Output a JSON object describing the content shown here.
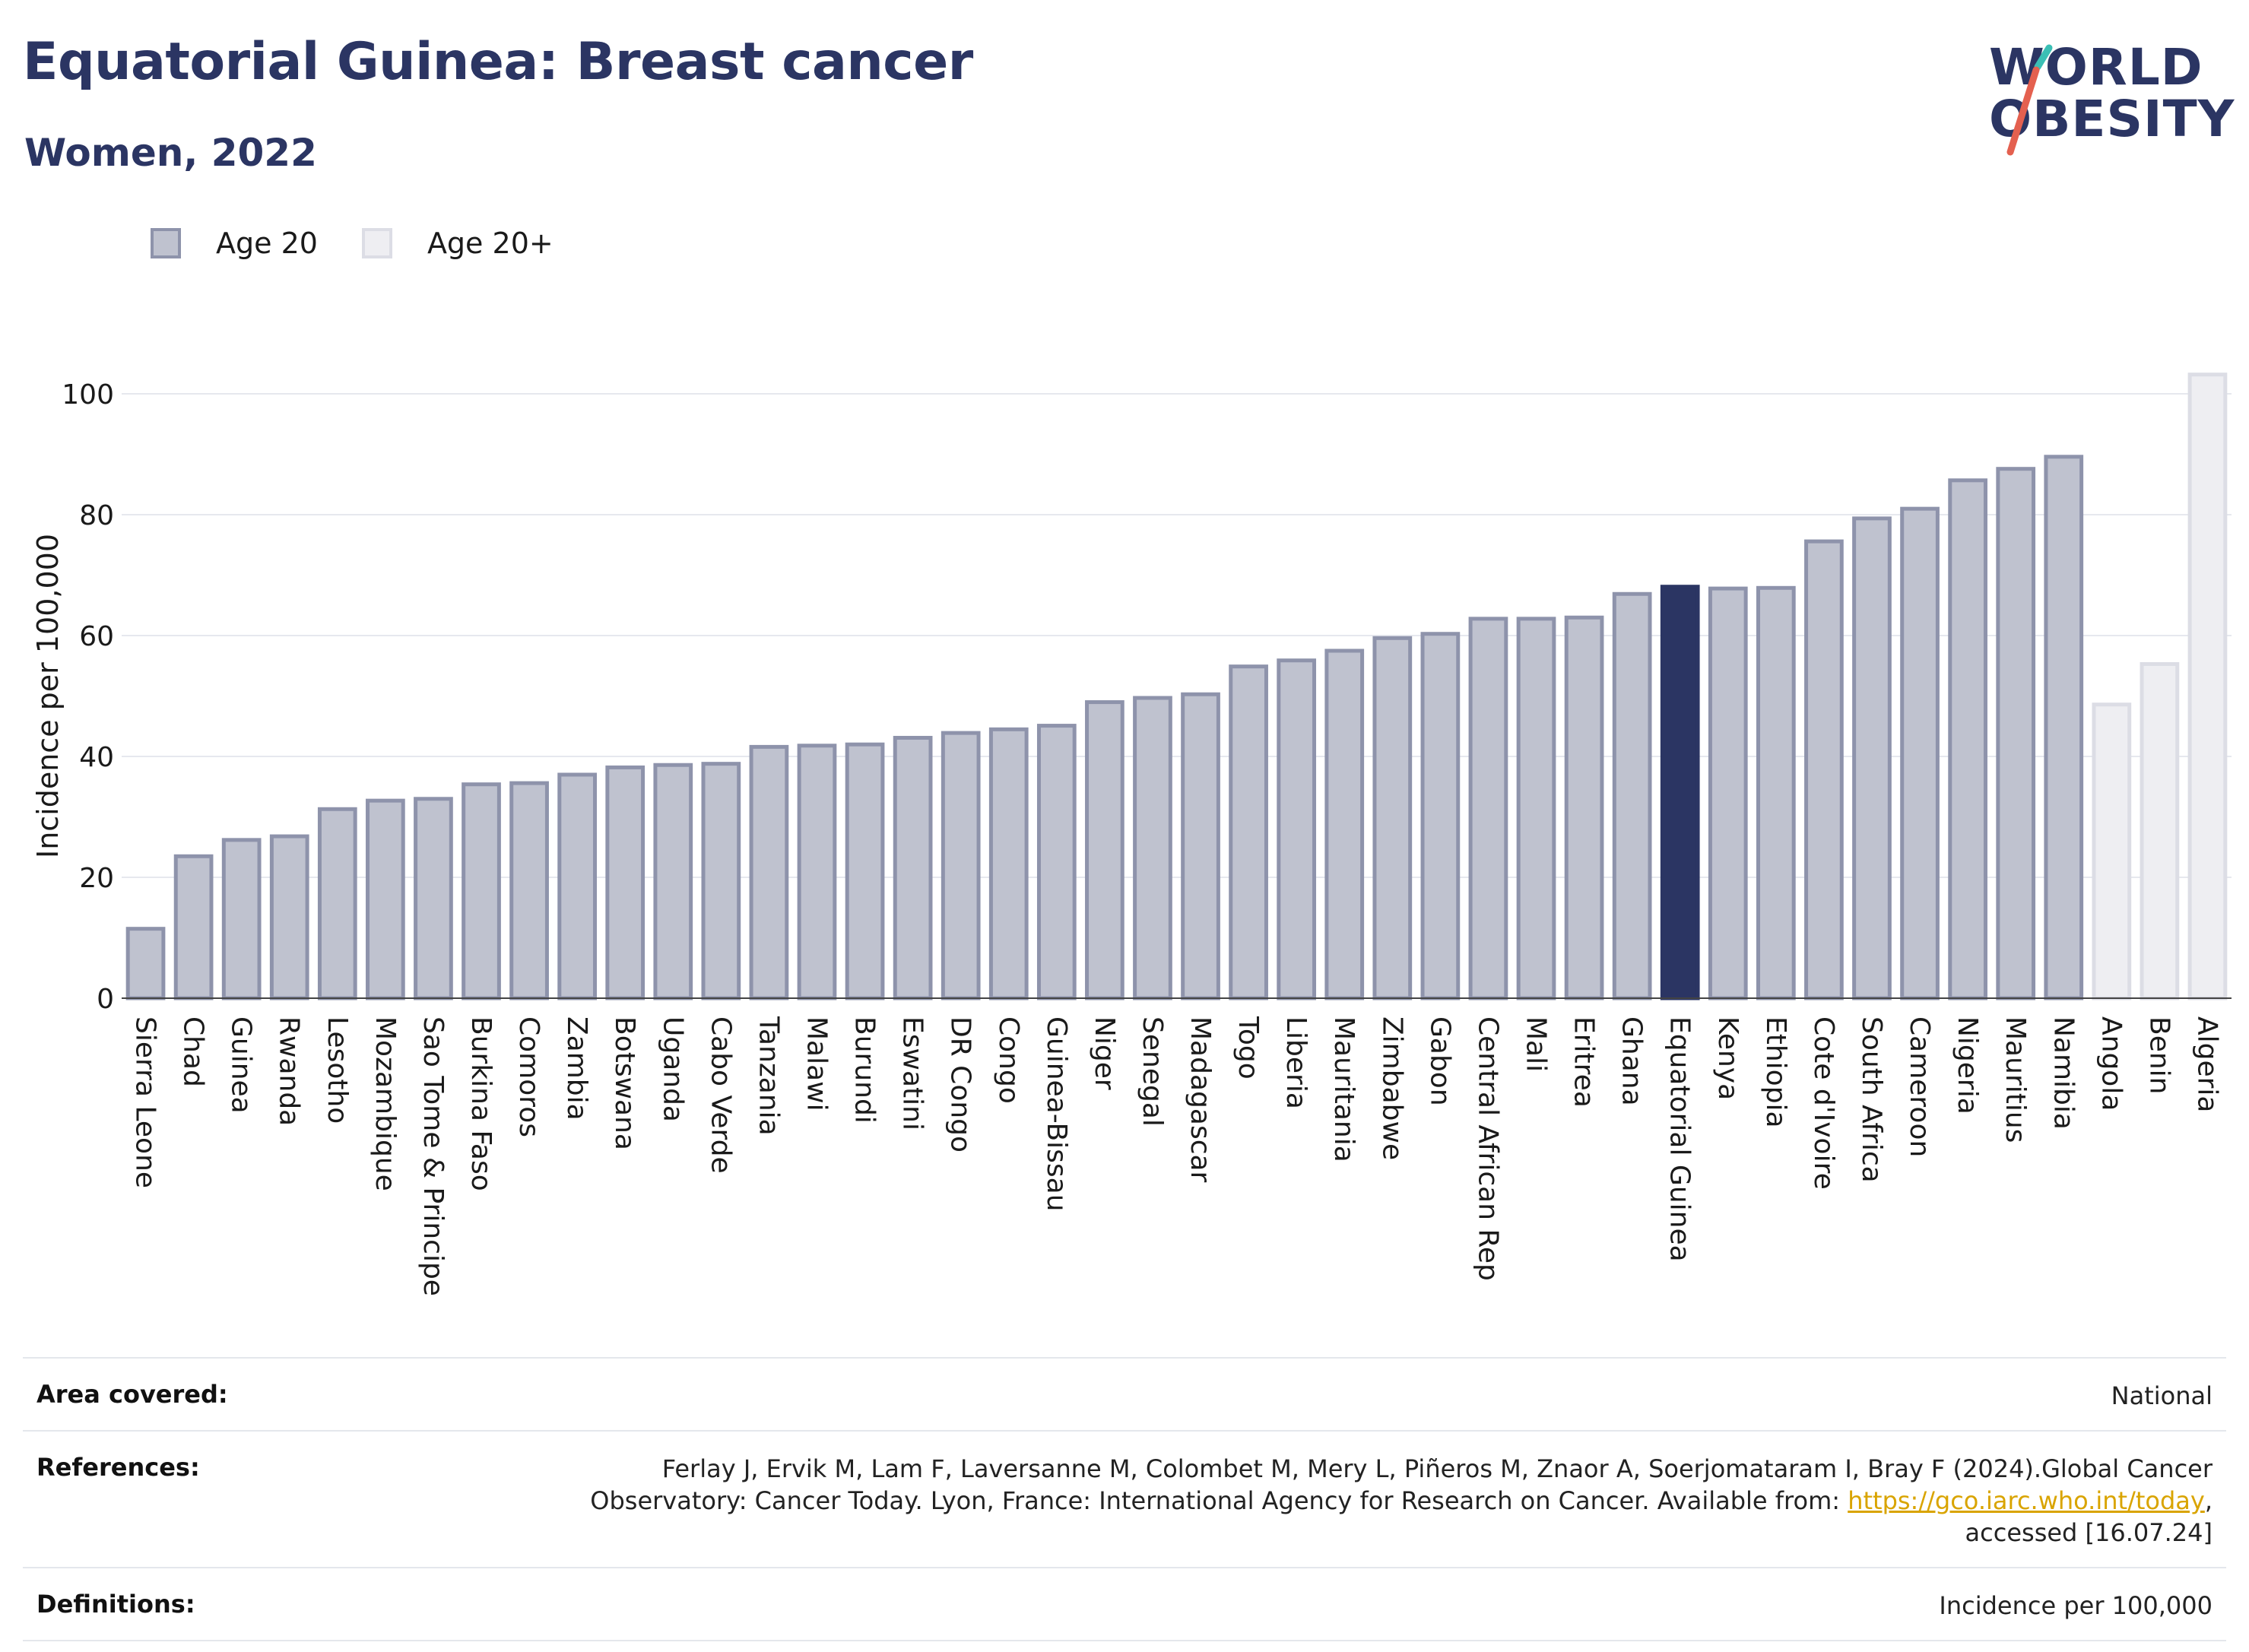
{
  "header": {
    "title": "Equatorial Guinea: Breast cancer",
    "subtitle": "Women, 2022"
  },
  "logo": {
    "line1": "WORLD",
    "line2": "OBESITY"
  },
  "legend": [
    {
      "label": "Age 20",
      "color": "#bfc2cf"
    },
    {
      "label": "Age 20+",
      "color": "#eeeef2"
    }
  ],
  "colors": {
    "bar_age20": "#bfc2cf",
    "bar_age20_border": "#8e93ab",
    "bar_highlight": "#2b3563",
    "bar_age20plus": "#eeeef2",
    "bar_age20plus_border": "#dcdde5",
    "title": "#2b3563",
    "logo_slash_teal": "#3bbfb5",
    "logo_slash_coral": "#e4604f"
  },
  "chart_data": {
    "type": "bar",
    "title": "Equatorial Guinea: Breast cancer",
    "subtitle": "Women, 2022",
    "xlabel": "",
    "ylabel": "Incidence per 100,000",
    "ylim": [
      0,
      105
    ],
    "yticks": [
      0,
      20,
      40,
      60,
      80,
      100
    ],
    "grid": true,
    "legend_position": "top-left",
    "highlight": "Equatorial Guinea",
    "categories": [
      "Sierra Leone",
      "Chad",
      "Guinea",
      "Rwanda",
      "Lesotho",
      "Mozambique",
      "Sao Tome & Principe",
      "Burkina Faso",
      "Comoros",
      "Zambia",
      "Botswana",
      "Uganda",
      "Cabo Verde",
      "Tanzania",
      "Malawi",
      "Burundi",
      "Eswatini",
      "DR Congo",
      "Congo",
      "Guinea-Bissau",
      "Niger",
      "Senegal",
      "Madagascar",
      "Togo",
      "Liberia",
      "Mauritania",
      "Zimbabwe",
      "Gabon",
      "Central African Rep",
      "Mali",
      "Eritrea",
      "Ghana",
      "Equatorial Guinea",
      "Kenya",
      "Ethiopia",
      "Cote d'Ivoire",
      "South Africa",
      "Cameroon",
      "Nigeria",
      "Mauritius",
      "Namibia",
      "Angola",
      "Benin",
      "Algeria"
    ],
    "values": [
      11.8,
      23.8,
      26.5,
      27.1,
      31.6,
      33.0,
      33.3,
      35.7,
      35.9,
      37.3,
      38.5,
      38.9,
      39.1,
      41.9,
      42.1,
      42.3,
      43.4,
      44.2,
      44.8,
      45.4,
      49.3,
      50.0,
      50.6,
      55.2,
      56.2,
      57.8,
      59.9,
      60.6,
      63.1,
      63.1,
      63.3,
      67.2,
      68.4,
      68.1,
      68.2,
      75.9,
      79.7,
      81.3,
      86.0,
      87.9,
      89.9,
      48.9,
      55.6,
      103.5
    ],
    "groups": [
      "Age 20",
      "Age 20",
      "Age 20",
      "Age 20",
      "Age 20",
      "Age 20",
      "Age 20",
      "Age 20",
      "Age 20",
      "Age 20",
      "Age 20",
      "Age 20",
      "Age 20",
      "Age 20",
      "Age 20",
      "Age 20",
      "Age 20",
      "Age 20",
      "Age 20",
      "Age 20",
      "Age 20",
      "Age 20",
      "Age 20",
      "Age 20",
      "Age 20",
      "Age 20",
      "Age 20",
      "Age 20",
      "Age 20",
      "Age 20",
      "Age 20",
      "Age 20",
      "Age 20",
      "Age 20",
      "Age 20",
      "Age 20",
      "Age 20",
      "Age 20",
      "Age 20",
      "Age 20",
      "Age 20",
      "Age 20+",
      "Age 20+",
      "Age 20+"
    ]
  },
  "footer": {
    "area_label": "Area covered:",
    "area_value": "National",
    "references_label": "References:",
    "references_text_1": "Ferlay J, Ervik M, Lam F, Laversanne M, Colombet M, Mery L, Piñeros M, Znaor A, Soerjomataram I, Bray F (2024).Global Cancer",
    "references_text_2": "Observatory: Cancer Today. Lyon, France: International Agency for Research on Cancer. Available from: ",
    "references_link": "https://gco.iarc.who.int/today",
    "references_text_3": ",",
    "references_text_4": "accessed [16.07.24]",
    "definitions_label": "Definitions:",
    "definitions_value": "Incidence per 100,000"
  }
}
